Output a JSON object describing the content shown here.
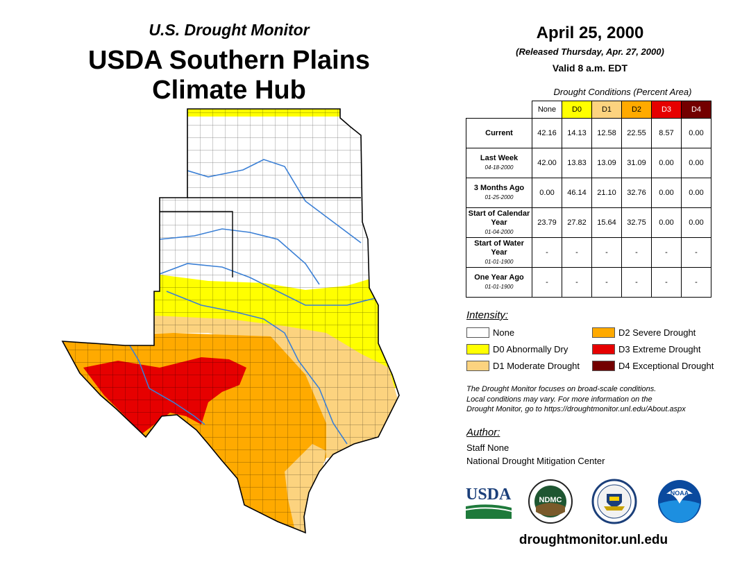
{
  "header": {
    "subtitle": "U.S. Drought Monitor",
    "title_line1": "USDA Southern Plains",
    "title_line2": "Climate Hub"
  },
  "map_date": "April 25, 2000",
  "released": "(Released Thursday, Apr. 27, 2000)",
  "valid": "Valid 8 a.m. EDT",
  "table": {
    "caption": "Drought Conditions (Percent Area)",
    "columns": [
      {
        "label": "None",
        "color": "#ffffff",
        "text": "#000000"
      },
      {
        "label": "D0",
        "color": "#ffff00",
        "text": "#000000"
      },
      {
        "label": "D1",
        "color": "#fcd37f",
        "text": "#000000"
      },
      {
        "label": "D2",
        "color": "#ffaa00",
        "text": "#000000"
      },
      {
        "label": "D3",
        "color": "#e60000",
        "text": "#ffffff"
      },
      {
        "label": "D4",
        "color": "#730000",
        "text": "#ffffff"
      }
    ],
    "rows": [
      {
        "label": "Current",
        "date": "",
        "values": [
          "42.16",
          "14.13",
          "12.58",
          "22.55",
          "8.57",
          "0.00"
        ]
      },
      {
        "label": "Last Week",
        "date": "04-18-2000",
        "values": [
          "42.00",
          "13.83",
          "13.09",
          "31.09",
          "0.00",
          "0.00"
        ]
      },
      {
        "label": "3 Months Ago",
        "date": "01-25-2000",
        "values": [
          "0.00",
          "46.14",
          "21.10",
          "32.76",
          "0.00",
          "0.00"
        ]
      },
      {
        "label": "Start of Calendar Year",
        "date": "01-04-2000",
        "values": [
          "23.79",
          "27.82",
          "15.64",
          "32.75",
          "0.00",
          "0.00"
        ]
      },
      {
        "label": "Start of Water Year",
        "date": "01-01-1900",
        "values": [
          "-",
          "-",
          "-",
          "-",
          "-",
          "-"
        ]
      },
      {
        "label": "One Year Ago",
        "date": "01-01-1900",
        "values": [
          "-",
          "-",
          "-",
          "-",
          "-",
          "-"
        ]
      }
    ]
  },
  "legend": {
    "title": "Intensity:",
    "items": [
      {
        "label": "None",
        "color": "#ffffff"
      },
      {
        "label": "D0 Abnormally Dry",
        "color": "#ffff00"
      },
      {
        "label": "D1 Moderate Drought",
        "color": "#fcd37f"
      },
      {
        "label": "D2 Severe Drought",
        "color": "#ffaa00"
      },
      {
        "label": "D3 Extreme Drought",
        "color": "#e60000"
      },
      {
        "label": "D4 Exceptional Drought",
        "color": "#730000"
      }
    ]
  },
  "note": [
    "The Drought Monitor focuses on broad-scale conditions.",
    "Local conditions may vary. For more information on the",
    "Drought Monitor, go to https://droughtmonitor.unl.edu/About.aspx"
  ],
  "author": {
    "heading": "Author:",
    "name": "Staff None",
    "org": "National Drought Mitigation Center"
  },
  "logos": {
    "usda": "USDA",
    "ndmc": "NDMC",
    "noaa": "NOAA"
  },
  "footer_url": "droughtmonitor.unl.edu"
}
